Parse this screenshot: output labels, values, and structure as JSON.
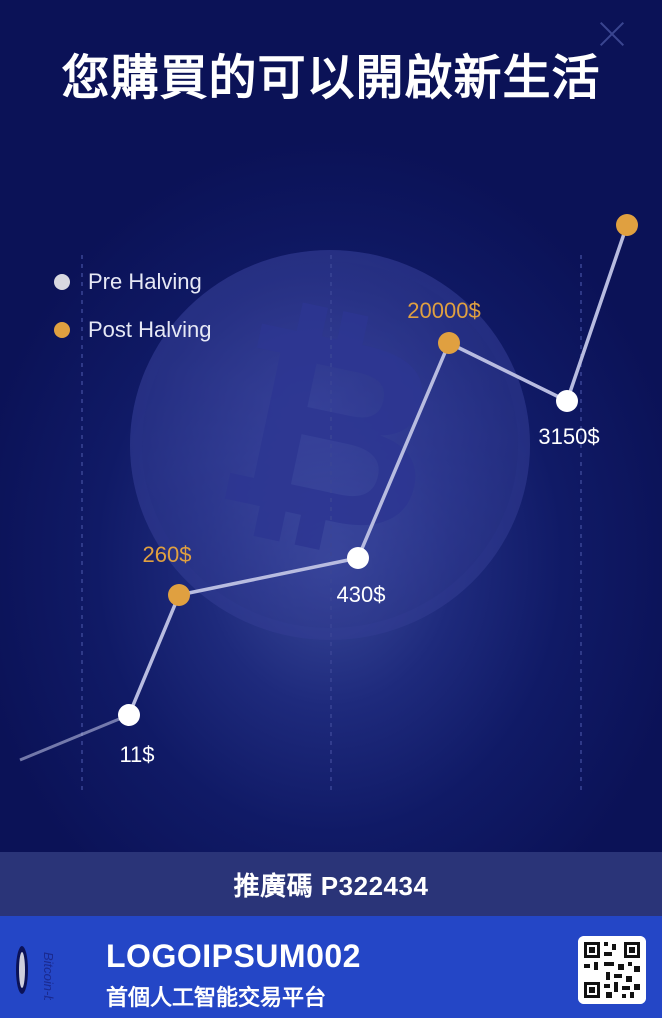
{
  "header": {
    "title": "您購買的可以開啟新生活",
    "close_icon": "close-icon"
  },
  "legend": [
    {
      "label": "Pre Halving",
      "color": "#d8d8e0"
    },
    {
      "label": "Post Halving",
      "color": "#e0a040"
    }
  ],
  "chart_data": {
    "type": "line",
    "x": [
      1,
      2,
      3,
      4,
      5,
      6
    ],
    "series": [
      {
        "name": "Pre Halving",
        "values": [
          11,
          null,
          430,
          null,
          3150,
          null
        ]
      },
      {
        "name": "Post Halving",
        "values": [
          null,
          260,
          null,
          20000,
          null,
          null
        ]
      }
    ],
    "points": [
      {
        "label": "11$",
        "phase": "pre"
      },
      {
        "label": "260$",
        "phase": "post"
      },
      {
        "label": "430$",
        "phase": "pre"
      },
      {
        "label": "20000$",
        "phase": "post"
      },
      {
        "label": "3150$",
        "phase": "pre"
      },
      {
        "label": "",
        "phase": "post"
      }
    ],
    "grid": true,
    "legend_position": "top-left"
  },
  "referral": {
    "text": "推廣碼 P322434"
  },
  "footer": {
    "brand": "LOGOIPSUM002",
    "tagline": "首個人工智能交易平台",
    "logo_text": "Bitcoin-bot"
  },
  "colors": {
    "pre": "#ffffff",
    "post": "#e0a040",
    "line": "#b8bce0",
    "post_label": "#e0a040",
    "pre_label": "#ffffff"
  }
}
